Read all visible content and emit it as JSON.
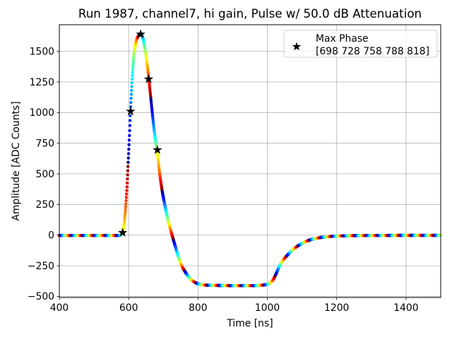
{
  "title": "Run 1987, channel7, hi gain, Pulse w/ 50.0 dB Attenuation",
  "xlabel": "Time [ns]",
  "ylabel": "Amplitude [ADC Counts]",
  "legend": {
    "line1": "Max Phase",
    "line2": "[698 728 758 788 818]",
    "marker": "black-star",
    "position": "upper right"
  },
  "colors": {
    "grid": "#b0b0b0",
    "spine": "#000000",
    "star": "#000000",
    "legend_border": "#cccccc",
    "legend_bg": "rgba(255,255,255,0.8)"
  },
  "chart_data": {
    "type": "scatter",
    "title": "Run 1987, channel7, hi gain, Pulse w/ 50.0 dB Attenuation",
    "xlabel": "Time [ns]",
    "ylabel": "Amplitude [ADC Counts]",
    "xlim": [
      400,
      1500
    ],
    "ylim": [
      -509,
      1717
    ],
    "x_ticks": [
      400,
      600,
      800,
      1000,
      1200,
      1400
    ],
    "x_tick_labels": [
      "400",
      "600",
      "800",
      "1000",
      "1200",
      "1400"
    ],
    "y_ticks": [
      -500,
      -250,
      0,
      250,
      500,
      750,
      1000,
      1250,
      1500
    ],
    "y_tick_labels": [
      "−500",
      "−250",
      "0",
      "250",
      "500",
      "750",
      "1000",
      "1250",
      "1500"
    ],
    "grid": true,
    "colormap": "jet-cyclic",
    "color_period_ns": 32.7,
    "color_phase_offset_ns": 30.5,
    "sample_step_ns": 0.6,
    "waveform_control_points": [
      [
        400,
        -3
      ],
      [
        460,
        -3
      ],
      [
        520,
        -3
      ],
      [
        556,
        -3
      ],
      [
        566,
        -3
      ],
      [
        573,
        -2
      ],
      [
        578,
        3
      ],
      [
        582,
        18
      ],
      [
        586,
        70
      ],
      [
        590,
        180
      ],
      [
        594,
        345
      ],
      [
        598,
        560
      ],
      [
        602,
        800
      ],
      [
        605,
        1000
      ],
      [
        608,
        1170
      ],
      [
        611,
        1320
      ],
      [
        614,
        1430
      ],
      [
        617,
        1510
      ],
      [
        620,
        1562
      ],
      [
        624,
        1603
      ],
      [
        628,
        1625
      ],
      [
        634,
        1640
      ],
      [
        639,
        1626
      ],
      [
        643,
        1585
      ],
      [
        648,
        1505
      ],
      [
        653,
        1402
      ],
      [
        658,
        1277
      ],
      [
        664,
        1113
      ],
      [
        670,
        948
      ],
      [
        676,
        800
      ],
      [
        682,
        690
      ],
      [
        690,
        490
      ],
      [
        697,
        355
      ],
      [
        704,
        250
      ],
      [
        712,
        142
      ],
      [
        720,
        52
      ],
      [
        728,
        -28
      ],
      [
        736,
        -106
      ],
      [
        745,
        -192
      ],
      [
        753,
        -250
      ],
      [
        762,
        -295
      ],
      [
        771,
        -333
      ],
      [
        780,
        -362
      ],
      [
        790,
        -384
      ],
      [
        800,
        -397
      ],
      [
        815,
        -406
      ],
      [
        830,
        -409
      ],
      [
        860,
        -411
      ],
      [
        900,
        -412
      ],
      [
        940,
        -413
      ],
      [
        975,
        -411
      ],
      [
        995,
        -404
      ],
      [
        1005,
        -395
      ],
      [
        1015,
        -371
      ],
      [
        1025,
        -317
      ],
      [
        1035,
        -252
      ],
      [
        1045,
        -206
      ],
      [
        1055,
        -172
      ],
      [
        1070,
        -129
      ],
      [
        1082,
        -100
      ],
      [
        1100,
        -68
      ],
      [
        1115,
        -47
      ],
      [
        1135,
        -30
      ],
      [
        1160,
        -17
      ],
      [
        1190,
        -9
      ],
      [
        1230,
        -5
      ],
      [
        1300,
        -3
      ],
      [
        1400,
        -2
      ],
      [
        1500,
        -2
      ]
    ],
    "max_phase_stars": [
      [
        582.6,
        20
      ],
      [
        605.5,
        1010
      ],
      [
        634.5,
        1640
      ],
      [
        657.5,
        1273
      ],
      [
        682.9,
        695
      ]
    ]
  }
}
